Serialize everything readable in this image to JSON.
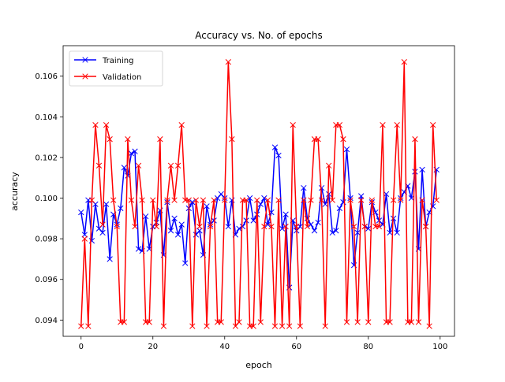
{
  "chart_data": {
    "type": "line",
    "title": "Accuracy vs. No. of epochs",
    "xlabel": "epoch",
    "ylabel": "accuracy",
    "xlim": [
      -5,
      104
    ],
    "ylim": [
      0.0932,
      0.1075
    ],
    "xticks": [
      0,
      20,
      40,
      60,
      80,
      100
    ],
    "yticks": [
      0.094,
      0.096,
      0.098,
      0.1,
      0.102,
      0.104,
      0.106
    ],
    "ytick_labels": [
      "0.094",
      "0.096",
      "0.098",
      "0.100",
      "0.102",
      "0.104",
      "0.106"
    ],
    "legend_position": "top-left",
    "grid": false,
    "x": [
      0,
      1,
      2,
      3,
      4,
      5,
      6,
      7,
      8,
      9,
      10,
      11,
      12,
      13,
      14,
      15,
      16,
      17,
      18,
      19,
      20,
      21,
      22,
      23,
      24,
      25,
      26,
      27,
      28,
      29,
      30,
      31,
      32,
      33,
      34,
      35,
      36,
      37,
      38,
      39,
      40,
      41,
      42,
      43,
      44,
      45,
      46,
      47,
      48,
      49,
      50,
      51,
      52,
      53,
      54,
      55,
      56,
      57,
      58,
      59,
      60,
      61,
      62,
      63,
      64,
      65,
      66,
      67,
      68,
      69,
      70,
      71,
      72,
      73,
      74,
      75,
      76,
      77,
      78,
      79,
      80,
      81,
      82,
      83,
      84,
      85,
      86,
      87,
      88,
      89,
      90,
      91,
      92,
      93,
      94,
      95,
      96,
      97,
      98,
      99
    ],
    "series": [
      {
        "name": "Training",
        "color": "#0000ff",
        "marker": "x",
        "values": [
          0.0993,
          0.0982,
          0.0999,
          0.0979,
          0.0997,
          0.0985,
          0.0983,
          0.0997,
          0.097,
          0.0992,
          0.0987,
          0.0995,
          0.1015,
          0.1011,
          0.1022,
          0.1023,
          0.0975,
          0.0974,
          0.0991,
          0.0975,
          0.0986,
          0.0988,
          0.0994,
          0.0972,
          0.0998,
          0.0984,
          0.099,
          0.0982,
          0.0987,
          0.0968,
          0.0995,
          0.0998,
          0.0982,
          0.0984,
          0.0972,
          0.0996,
          0.0987,
          0.0989,
          0.1,
          0.1002,
          0.1,
          0.0986,
          0.0999,
          0.0982,
          0.0985,
          0.0986,
          0.0989,
          0.1,
          0.0989,
          0.0992,
          0.0997,
          0.1,
          0.0987,
          0.0993,
          0.1025,
          0.1021,
          0.0985,
          0.0992,
          0.0956,
          0.0989,
          0.0984,
          0.0986,
          0.1005,
          0.099,
          0.0987,
          0.0984,
          0.0988,
          0.1005,
          0.0997,
          0.1002,
          0.0983,
          0.0984,
          0.0995,
          0.0998,
          0.1024,
          0.1,
          0.0967,
          0.0983,
          0.1001,
          0.0986,
          0.0985,
          0.0998,
          0.0993,
          0.0989,
          0.0987,
          0.1002,
          0.0983,
          0.099,
          0.0983,
          0.1,
          0.1003,
          0.1006,
          0.1,
          0.1013,
          0.0975,
          0.1014,
          0.0986,
          0.0993,
          0.0996,
          0.1014
        ]
      },
      {
        "name": "Validation",
        "color": "#ff0000",
        "marker": "x",
        "values": [
          0.0937,
          0.098,
          0.0937,
          0.0999,
          0.1036,
          0.1016,
          0.0987,
          0.1036,
          0.1029,
          0.0999,
          0.0986,
          0.0939,
          0.0939,
          0.1029,
          0.0999,
          0.0986,
          0.1016,
          0.0999,
          0.0939,
          0.0939,
          0.0999,
          0.0986,
          0.1029,
          0.0937,
          0.0999,
          0.1016,
          0.0999,
          0.1016,
          0.1036,
          0.0999,
          0.0999,
          0.0937,
          0.0999,
          0.0986,
          0.0999,
          0.0937,
          0.0986,
          0.0999,
          0.0939,
          0.0939,
          0.0999,
          0.1067,
          0.1029,
          0.0937,
          0.0939,
          0.0999,
          0.0999,
          0.0937,
          0.0937,
          0.0999,
          0.0939,
          0.0986,
          0.0999,
          0.0986,
          0.0937,
          0.0999,
          0.0937,
          0.0986,
          0.0937,
          0.1036,
          0.0986,
          0.0937,
          0.0999,
          0.0986,
          0.0999,
          0.1029,
          0.1029,
          0.0999,
          0.0937,
          0.1016,
          0.0999,
          0.1036,
          0.1036,
          0.1029,
          0.0939,
          0.0999,
          0.0986,
          0.0939,
          0.0999,
          0.0986,
          0.0939,
          0.0999,
          0.0986,
          0.0986,
          0.1036,
          0.0939,
          0.0939,
          0.0999,
          0.1036,
          0.0999,
          0.1067,
          0.0939,
          0.0939,
          0.1029,
          0.0939,
          0.0999,
          0.0986,
          0.0937,
          0.1036,
          0.0999
        ]
      }
    ]
  }
}
